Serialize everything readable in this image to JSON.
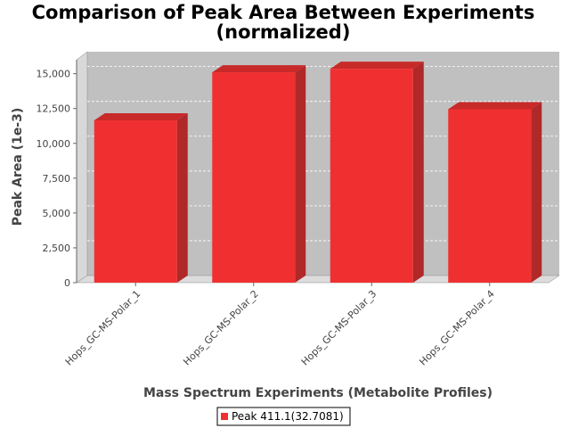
{
  "chart_data": {
    "type": "bar",
    "title_lines": [
      "Comparison of Peak Area Between Experiments",
      "(normalized)"
    ],
    "xlabel": "Mass Spectrum Experiments (Metabolite Profiles)",
    "ylabel": "Peak Area (1e-3)",
    "categories": [
      "Hops_GC-MS-Polar_1",
      "Hops_GC-MS-Polar_2",
      "Hops_GC-MS-Polar_3",
      "Hops_GC-MS-Polar_4"
    ],
    "series": [
      {
        "name": "Peak 411.1(32.7081)",
        "values": [
          11650,
          15100,
          15350,
          12450
        ],
        "color": "#f03030"
      }
    ],
    "ylim": [
      0,
      16000
    ],
    "yticks": [
      0,
      2500,
      5000,
      7500,
      10000,
      12500,
      15000
    ],
    "ytick_labels": [
      "0",
      "2,500",
      "5,000",
      "7,500",
      "10,000",
      "12,500",
      "15,000"
    ],
    "grid": true,
    "legend_position": "bottom-center",
    "style": "3d",
    "plot_background": "#c0c0c0"
  }
}
